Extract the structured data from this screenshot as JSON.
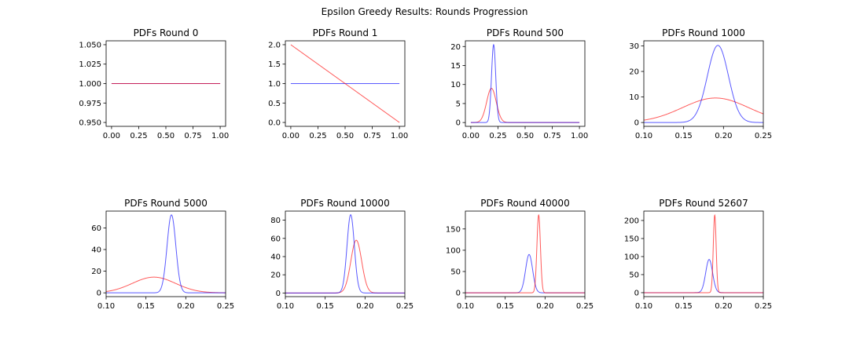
{
  "suptitle": "Epsilon Greedy Results: Rounds Progression",
  "colors": {
    "red": "#ff0000",
    "blue": "#0000ff"
  },
  "chart_data": [
    {
      "type": "line",
      "title": "PDFs Round 0",
      "xlim": [
        -0.05,
        1.05
      ],
      "ylim": [
        0.945,
        1.055
      ],
      "xticks": [
        0,
        0.25,
        0.5,
        0.75,
        1.0
      ],
      "xtick_labels": [
        "0.00",
        "0.25",
        "0.50",
        "0.75",
        "1.00"
      ],
      "yticks": [
        0.95,
        0.975,
        1.0,
        1.025,
        1.05
      ],
      "ytick_labels": [
        "0.950",
        "0.975",
        "1.000",
        "1.025",
        "1.050"
      ],
      "x_range": [
        0,
        1
      ],
      "series": [
        {
          "color": "blue",
          "kind": "const",
          "value": 1.0
        },
        {
          "color": "red",
          "kind": "const",
          "value": 1.0
        }
      ]
    },
    {
      "type": "line",
      "title": "PDFs Round 1",
      "xlim": [
        -0.05,
        1.05
      ],
      "ylim": [
        -0.1,
        2.1
      ],
      "xticks": [
        0,
        0.25,
        0.5,
        0.75,
        1.0
      ],
      "xtick_labels": [
        "0.00",
        "0.25",
        "0.50",
        "0.75",
        "1.00"
      ],
      "yticks": [
        0,
        0.5,
        1.0,
        1.5,
        2.0
      ],
      "ytick_labels": [
        "0.0",
        "0.5",
        "1.0",
        "1.5",
        "2.0"
      ],
      "x_range": [
        0,
        1
      ],
      "series": [
        {
          "color": "blue",
          "kind": "const",
          "value": 1.0
        },
        {
          "color": "red",
          "kind": "linear",
          "start": 2.0,
          "end": 0.0
        }
      ]
    },
    {
      "type": "line",
      "title": "PDFs Round 500",
      "xlim": [
        -0.05,
        1.05
      ],
      "ylim": [
        -1.0,
        21.5
      ],
      "xticks": [
        0,
        0.25,
        0.5,
        0.75,
        1.0
      ],
      "xtick_labels": [
        "0.00",
        "0.25",
        "0.50",
        "0.75",
        "1.00"
      ],
      "yticks": [
        0,
        5,
        10,
        15,
        20
      ],
      "ytick_labels": [
        "0",
        "5",
        "10",
        "15",
        "20"
      ],
      "x_range": [
        0,
        1
      ],
      "series": [
        {
          "color": "red",
          "kind": "gauss",
          "mu": 0.19,
          "sigma": 0.044,
          "peak": 9.0
        },
        {
          "color": "blue",
          "kind": "gauss",
          "mu": 0.21,
          "sigma": 0.0193,
          "peak": 20.5
        }
      ]
    },
    {
      "type": "line",
      "title": "PDFs Round 1000",
      "xlim": [
        0.1,
        0.25
      ],
      "ylim": [
        -1.5,
        32
      ],
      "xticks": [
        0.1,
        0.15,
        0.2,
        0.25
      ],
      "xtick_labels": [
        "0.10",
        "0.15",
        "0.20",
        "0.25"
      ],
      "yticks": [
        0,
        10,
        20,
        30
      ],
      "ytick_labels": [
        "0",
        "10",
        "20",
        "30"
      ],
      "x_range": [
        0.1,
        0.25
      ],
      "series": [
        {
          "color": "red",
          "kind": "gauss",
          "mu": 0.19,
          "sigma": 0.0416,
          "peak": 9.6
        },
        {
          "color": "blue",
          "kind": "gauss",
          "mu": 0.193,
          "sigma": 0.0132,
          "peak": 30.2
        }
      ]
    },
    {
      "type": "line",
      "title": "PDFs Round 5000",
      "xlim": [
        0.1,
        0.25
      ],
      "ylim": [
        -3.5,
        75.5
      ],
      "xticks": [
        0.1,
        0.15,
        0.2,
        0.25
      ],
      "xtick_labels": [
        "0.10",
        "0.15",
        "0.20",
        "0.25"
      ],
      "yticks": [
        0,
        20,
        40,
        60
      ],
      "ytick_labels": [
        "0",
        "20",
        "40",
        "60"
      ],
      "x_range": [
        0.1,
        0.25
      ],
      "series": [
        {
          "color": "red",
          "kind": "gauss",
          "mu": 0.16,
          "sigma": 0.027,
          "peak": 14.5
        },
        {
          "color": "blue",
          "kind": "gauss",
          "mu": 0.182,
          "sigma": 0.0055,
          "peak": 72.0
        }
      ]
    },
    {
      "type": "line",
      "title": "PDFs Round 10000",
      "xlim": [
        0.1,
        0.25
      ],
      "ylim": [
        -4,
        90
      ],
      "xticks": [
        0.1,
        0.15,
        0.2,
        0.25
      ],
      "xtick_labels": [
        "0.10",
        "0.15",
        "0.20",
        "0.25"
      ],
      "yticks": [
        0,
        20,
        40,
        60,
        80
      ],
      "ytick_labels": [
        "0",
        "20",
        "40",
        "60",
        "80"
      ],
      "x_range": [
        0.1,
        0.25
      ],
      "series": [
        {
          "color": "red",
          "kind": "gauss",
          "mu": 0.189,
          "sigma": 0.0068,
          "peak": 58.0
        },
        {
          "color": "blue",
          "kind": "gauss",
          "mu": 0.182,
          "sigma": 0.0046,
          "peak": 86.0
        }
      ]
    },
    {
      "type": "line",
      "title": "PDFs Round 40000",
      "xlim": [
        0.1,
        0.25
      ],
      "ylim": [
        -9,
        192
      ],
      "xticks": [
        0.1,
        0.15,
        0.2,
        0.25
      ],
      "xtick_labels": [
        "0.10",
        "0.15",
        "0.20",
        "0.25"
      ],
      "yticks": [
        0,
        50,
        100,
        150
      ],
      "ytick_labels": [
        "0",
        "50",
        "100",
        "150"
      ],
      "x_range": [
        0.1,
        0.25
      ],
      "series": [
        {
          "color": "blue",
          "kind": "gauss",
          "mu": 0.18,
          "sigma": 0.0044,
          "peak": 90.0
        },
        {
          "color": "red",
          "kind": "gauss",
          "mu": 0.192,
          "sigma": 0.0022,
          "peak": 183.0
        }
      ]
    },
    {
      "type": "line",
      "title": "PDFs Round 52607",
      "xlim": [
        0.1,
        0.25
      ],
      "ylim": [
        -11,
        226
      ],
      "xticks": [
        0.1,
        0.15,
        0.2,
        0.25
      ],
      "xtick_labels": [
        "0.10",
        "0.15",
        "0.20",
        "0.25"
      ],
      "yticks": [
        0,
        50,
        100,
        150,
        200
      ],
      "ytick_labels": [
        "0",
        "50",
        "100",
        "150",
        "200"
      ],
      "x_range": [
        0.1,
        0.25
      ],
      "series": [
        {
          "color": "blue",
          "kind": "gauss",
          "mu": 0.182,
          "sigma": 0.0043,
          "peak": 92.0
        },
        {
          "color": "red",
          "kind": "gauss",
          "mu": 0.189,
          "sigma": 0.0018,
          "peak": 215.0
        }
      ]
    }
  ]
}
